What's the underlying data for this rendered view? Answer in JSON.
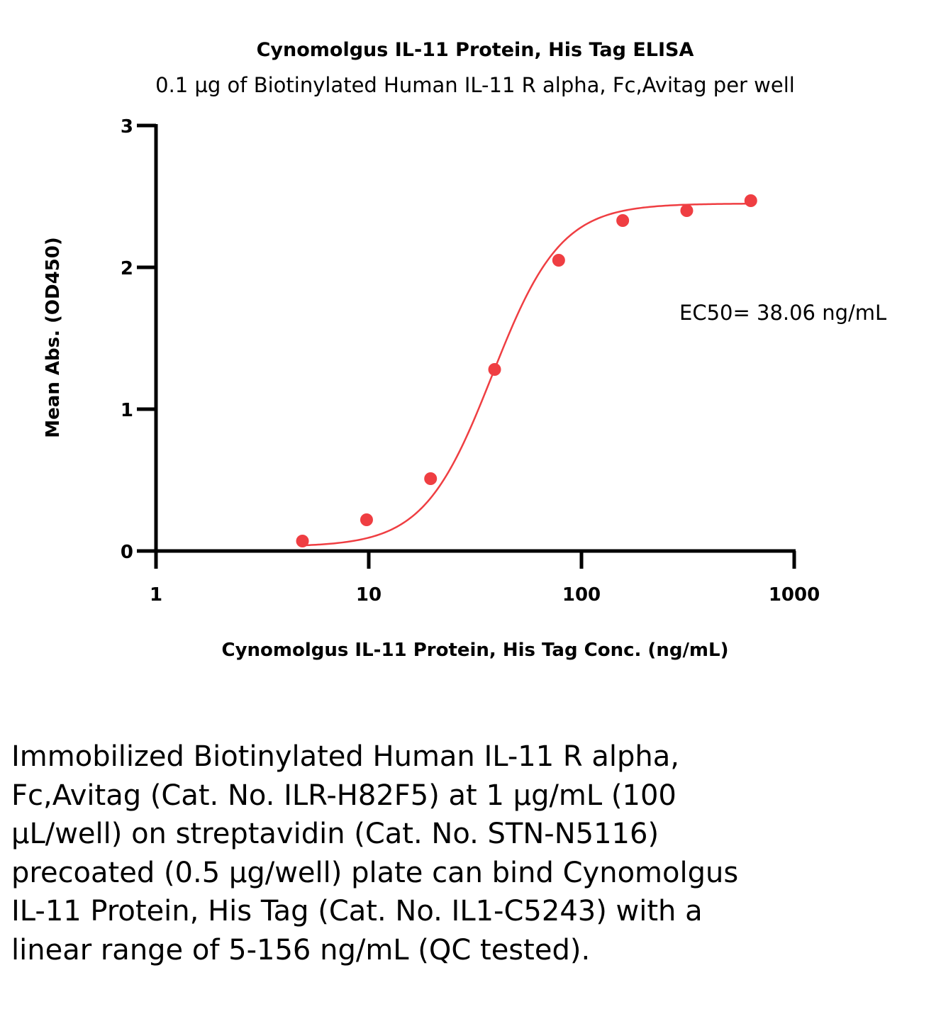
{
  "chart_data": {
    "type": "scatter",
    "title": "Cynomolgus IL-11 Protein, His Tag ELISA",
    "subtitle": "0.1 µg of Biotinylated Human IL-11 R alpha, Fc,Avitag per well",
    "xlabel": "Cynomolgus IL-11 Protein, His Tag Conc. (ng/mL)",
    "ylabel": "Mean Abs. (OD450)",
    "xscale": "log",
    "xlim": [
      1,
      1000
    ],
    "ylim": [
      0,
      3
    ],
    "x_ticks": [
      1,
      10,
      100,
      1000
    ],
    "x_tick_labels": [
      "1",
      "10",
      "100",
      "1000"
    ],
    "y_ticks": [
      0,
      1,
      2,
      3
    ],
    "y_tick_labels": [
      "0",
      "1",
      "2",
      "3"
    ],
    "grid": false,
    "series": [
      {
        "name": "Cynomolgus IL-11 Protein, His Tag",
        "color": "#ef3e42",
        "x": [
          4.88,
          9.77,
          19.53,
          39.06,
          78.13,
          156.25,
          312.5,
          625
        ],
        "y": [
          0.07,
          0.22,
          0.51,
          1.28,
          2.05,
          2.33,
          2.4,
          2.47
        ],
        "fit": {
          "model": "4PL",
          "bottom": 0.03,
          "top": 2.45,
          "ec50": 38.06,
          "hill": 2.7
        }
      }
    ],
    "annotations": [
      "EC50= 38.06 ng/mL"
    ]
  },
  "caption": "Immobilized Biotinylated Human IL-11 R alpha, Fc,Avitag (Cat. No. ILR-H82F5) at 1 µg/mL (100 µL/well) on streptavidin (Cat. No. STN-N5116) precoated (0.5 µg/well) plate can bind Cynomolgus IL-11 Protein, His Tag (Cat. No. IL1-C5243) with a linear range of 5-156 ng/mL (QC tested)."
}
